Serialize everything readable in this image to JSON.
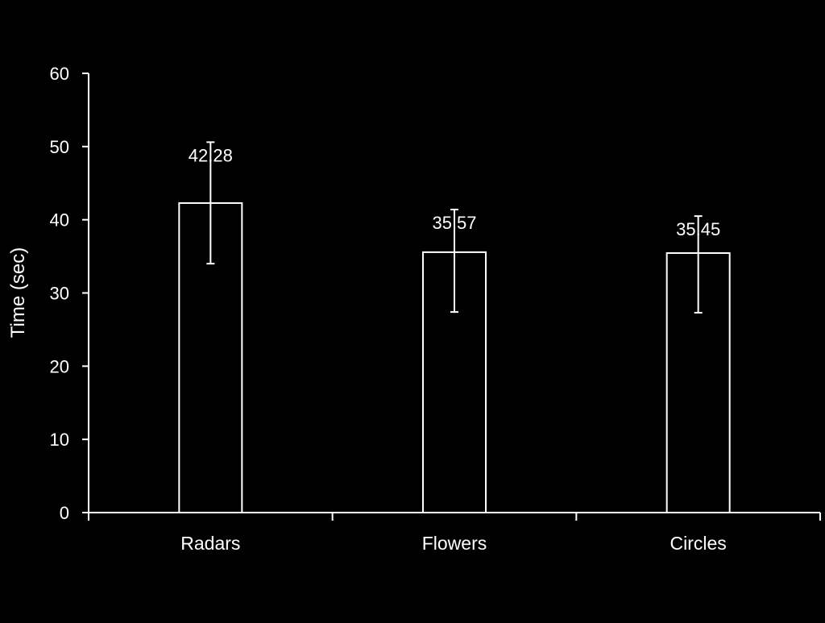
{
  "chart_data": {
    "type": "bar",
    "title": "",
    "xlabel": "",
    "ylabel": "Time (sec)",
    "categories": [
      "Radars",
      "Flowers",
      "Circles"
    ],
    "values": [
      42.28,
      35.57,
      35.45
    ],
    "value_labels": [
      "42.28",
      "35.57",
      "35.45"
    ],
    "error_bars": [
      {
        "low": 34.0,
        "high": 50.6
      },
      {
        "low": 27.4,
        "high": 41.4
      },
      {
        "low": 27.3,
        "high": 40.5
      }
    ],
    "ylim": [
      0,
      60
    ],
    "yticks": [
      0,
      10,
      20,
      30,
      40,
      50,
      60
    ],
    "ytick_labels": [
      "0",
      "10",
      "20",
      "30",
      "40",
      "50",
      "60"
    ],
    "grid": false,
    "legend": "none",
    "colors": {
      "background": "#000000",
      "foreground": "#ffffff"
    }
  }
}
